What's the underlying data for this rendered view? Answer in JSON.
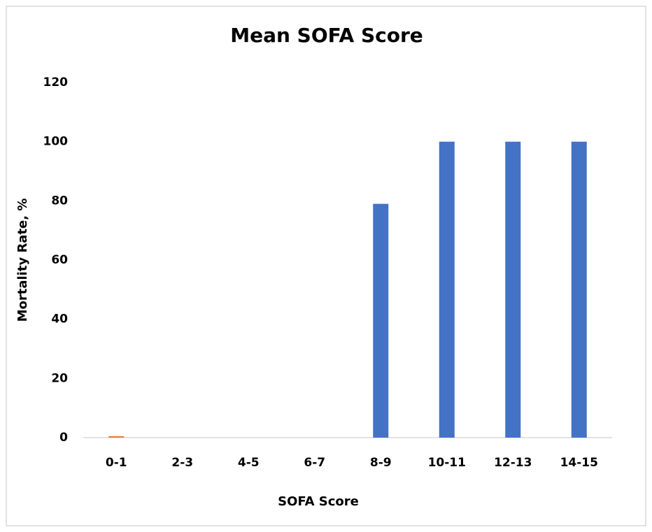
{
  "chart_data": {
    "type": "bar",
    "title": "Mean SOFA Score",
    "x_label": "SOFA Score",
    "y_label": "Mortality Rate, %",
    "categories": [
      "0-1",
      "2-3",
      "4-5",
      "6-7",
      "8-9",
      "10-11",
      "12-13",
      "14-15"
    ],
    "values": [
      0.5,
      0,
      0,
      0,
      79,
      100,
      100,
      100
    ],
    "colors": [
      "#ed7d31",
      "#4472c4",
      "#4472c4",
      "#4472c4",
      "#4472c4",
      "#4472c4",
      "#4472c4",
      "#4472c4"
    ],
    "ylim": [
      0,
      120
    ],
    "yticks": [
      0,
      20,
      40,
      60,
      80,
      100,
      120
    ],
    "grid": false
  }
}
